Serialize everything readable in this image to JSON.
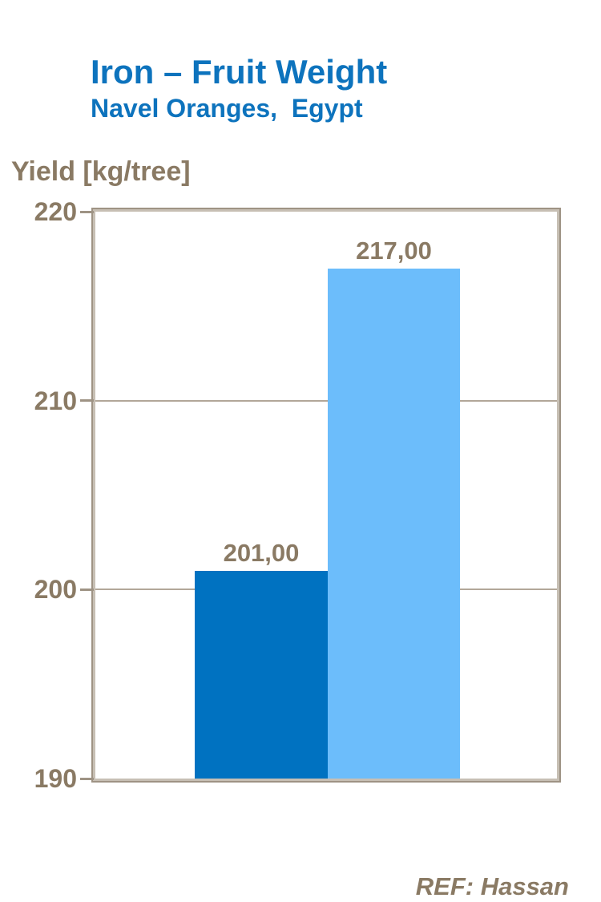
{
  "header": {
    "title": "Iron – Fruit Weight",
    "subtitle": "Navel Oranges,  Egypt"
  },
  "footer": {
    "ref": "REF: Hassan"
  },
  "colors": {
    "title_blue": "#0d73bd",
    "text_brown": "#8a7a64",
    "frame": "#9e9384",
    "frame_light": "#c7bfb4",
    "gridline": "#b2a799",
    "bar_dark_blue": "#0072c1",
    "bar_light_blue": "#6cbdfb"
  },
  "chart_data": {
    "type": "bar",
    "title": "Iron – Fruit Weight",
    "subtitle": "Navel Oranges, Egypt",
    "ylabel": "Yield [kg/tree]",
    "ylim": [
      190,
      220
    ],
    "yticks": [
      220,
      210,
      200,
      190
    ],
    "ytick_labels": [
      "220",
      "210",
      "200",
      "190"
    ],
    "grid": "horizontal",
    "legend": "none",
    "bars": [
      {
        "value": 201.0,
        "label": "201,00",
        "color": "#0072c1"
      },
      {
        "value": 217.0,
        "label": "217,00",
        "color": "#6cbdfb"
      }
    ],
    "footnote": "REF: Hassan"
  }
}
